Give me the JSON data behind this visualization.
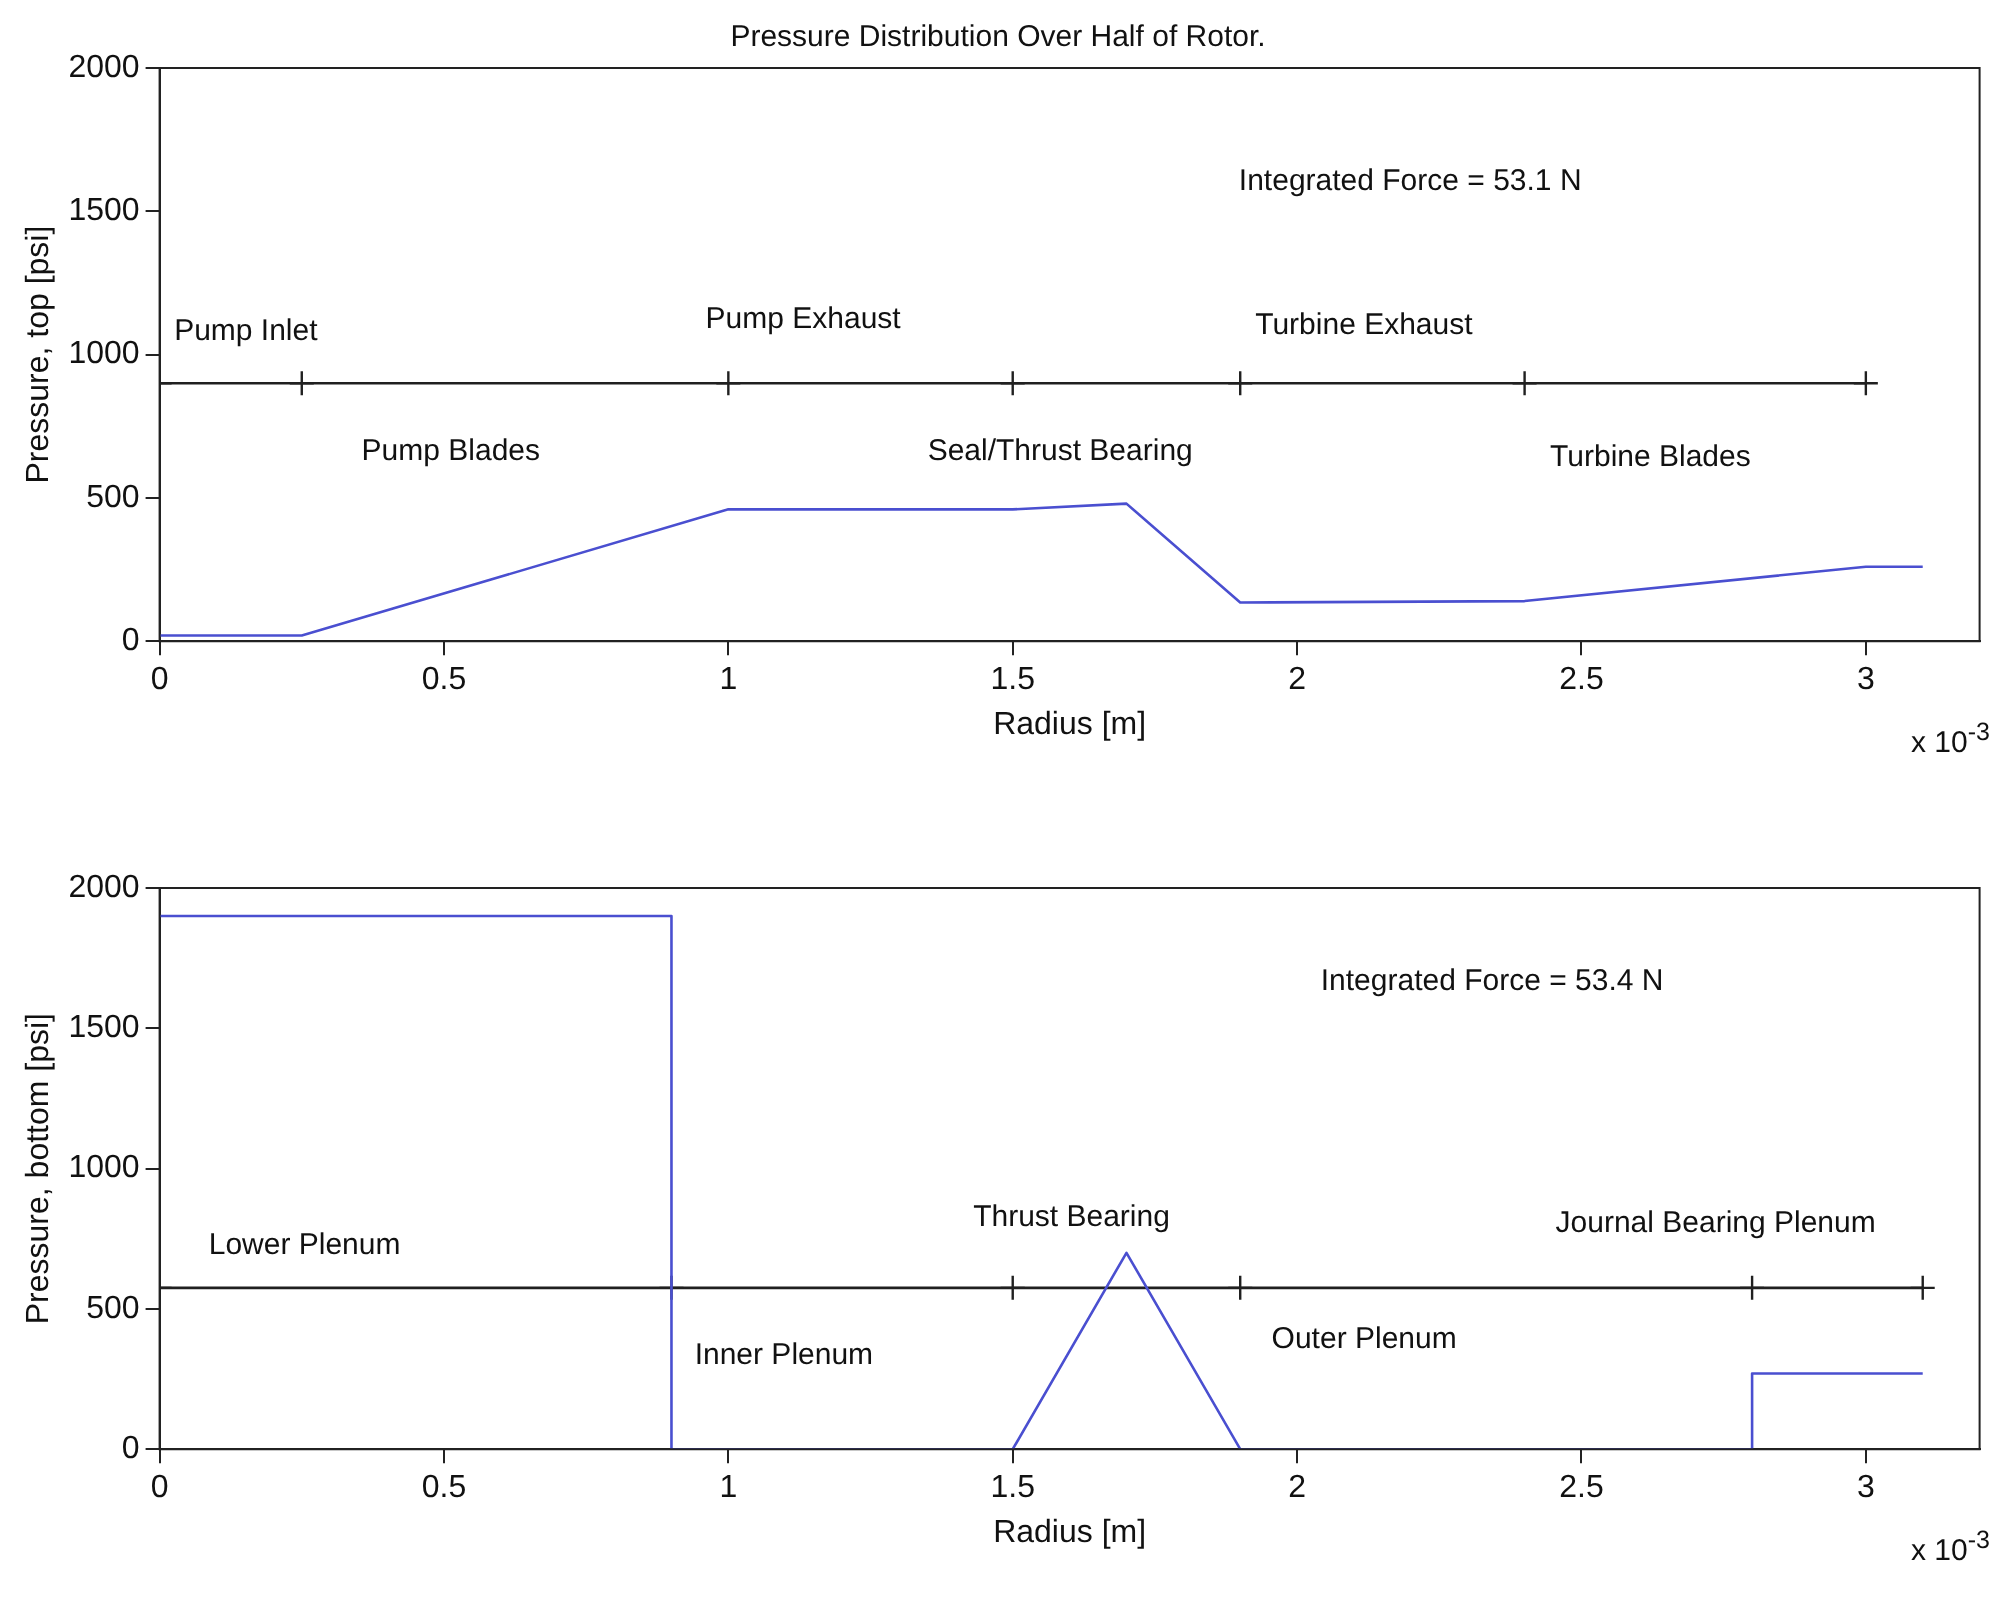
{
  "chart_data": [
    {
      "type": "line",
      "title": "Pressure Distribution Over Half of Rotor.",
      "xlabel": "Radius [m]",
      "ylabel": "Pressure, top [psi]",
      "xlim": [
        0,
        3.2
      ],
      "xticks": [
        0,
        0.5,
        1,
        1.5,
        2,
        2.5,
        3
      ],
      "ylim": [
        0,
        2000
      ],
      "yticks": [
        0,
        500,
        1000,
        1500,
        2000
      ],
      "grid": false,
      "legend": false,
      "series": [
        {
          "color": "#4a4fd0",
          "marker": "none",
          "x": [
            0,
            0.25,
            1,
            1.5,
            1.7,
            1.9,
            2.4,
            3,
            3.1
          ],
          "values": [
            20,
            20,
            460,
            460,
            480,
            135,
            140,
            260,
            260
          ]
        },
        {
          "color": "#202020",
          "marker": "cross",
          "x": [
            0,
            0.25,
            1,
            1.5,
            1.9,
            2.4,
            3
          ],
          "values": [
            900,
            900,
            900,
            900,
            900,
            900,
            900
          ]
        }
      ],
      "annotations": [
        "Integrated Force = 53.1 N",
        "Pump Inlet",
        "Pump Exhaust",
        "Turbine Exhaust",
        "Pump Blades",
        "Seal/Thrust Bearing",
        "Turbine Blades",
        "x 10$^{-3}$"
      ]
    },
    {
      "type": "line",
      "xlabel": "Radius [m]",
      "ylabel": "Pressure, bottom [psi]",
      "xlim": [
        0,
        3.2
      ],
      "xticks": [
        0,
        0.5,
        1,
        1.5,
        2,
        2.5,
        3
      ],
      "ylim": [
        0,
        2000
      ],
      "yticks": [
        0,
        500,
        1000,
        1500,
        2000
      ],
      "grid": false,
      "legend": false,
      "series": [
        {
          "color": "#4a4fd0",
          "marker": "none",
          "x": [
            0,
            0.9,
            0.9,
            1.5,
            1.7,
            1.9,
            2.8,
            2.8,
            3.1
          ],
          "values": [
            1900,
            1900,
            0,
            0,
            700,
            0,
            0,
            270,
            270
          ]
        },
        {
          "color": "#202020",
          "marker": "cross",
          "x": [
            0,
            0.9,
            1.5,
            1.9,
            2.8,
            3.1
          ],
          "values": [
            575,
            575,
            575,
            575,
            575,
            575
          ]
        }
      ],
      "annotations": [
        "Integrated Force = 53.4 N",
        "Lower Plenum",
        "Inner Plenum",
        "Thrust Bearing",
        "Outer Plenum",
        "Journal Bearing Plenum",
        "x 10$^{-3}$"
      ]
    }
  ]
}
